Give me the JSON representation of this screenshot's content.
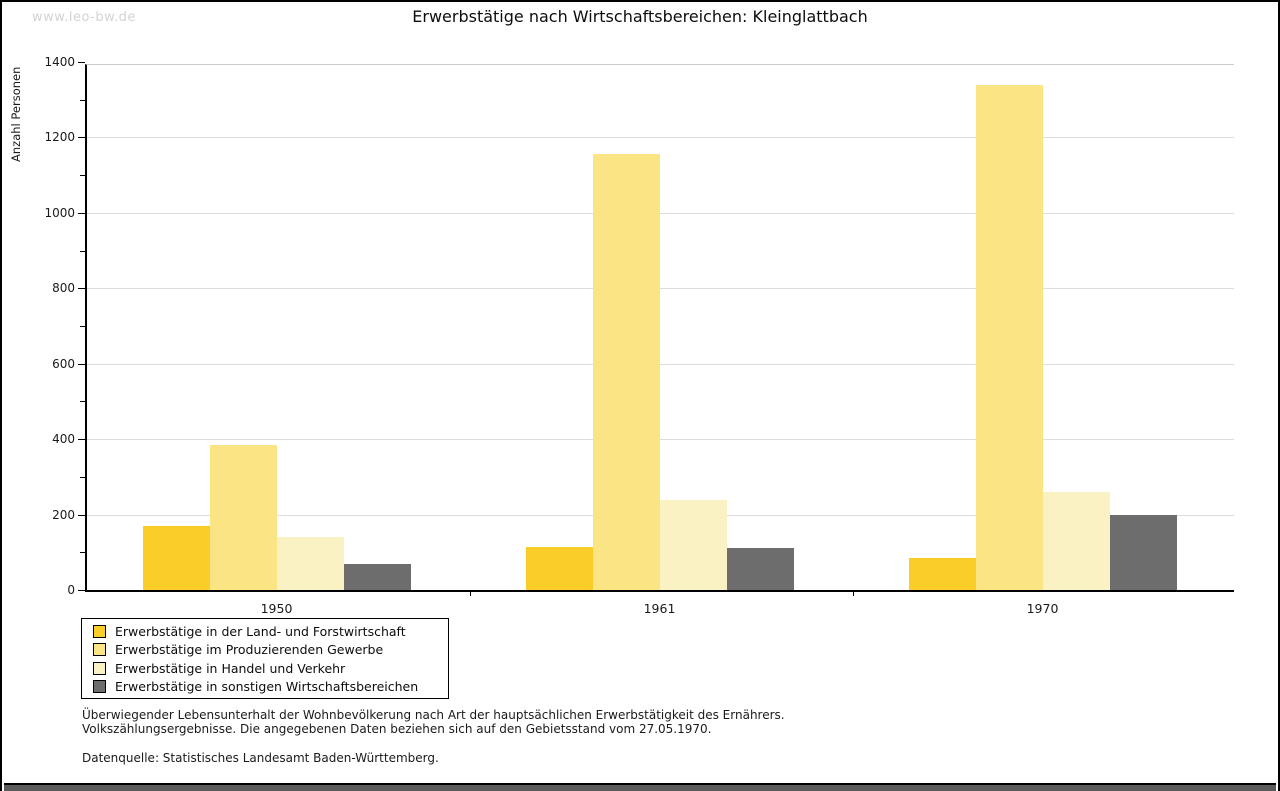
{
  "watermark": "www.leo-bw.de",
  "title": "Erwerbstätige nach Wirtschaftsbereichen: Kleinglattbach",
  "footnotes": {
    "line1": "Überwiegender Lebensunterhalt der Wohnbevölkerung nach Art der hauptsächlichen Erwerbstätigkeit des Ernährers.",
    "line2": "Volkszählungsergebnisse. Die angegebenen Daten beziehen sich auf den Gebietsstand vom 27.05.1970.",
    "source": "Datenquelle: Statistisches Landesamt Baden-Württemberg."
  },
  "chart_data": {
    "type": "bar",
    "title": "Erwerbstätige nach Wirtschaftsbereichen: Kleinglattbach",
    "xlabel": "",
    "ylabel": "Anzahl Personen",
    "categories": [
      "1950",
      "1961",
      "1970"
    ],
    "series": [
      {
        "name": "Erwerbstätige in der Land- und Forstwirtschaft",
        "color": "#FACD28",
        "values": [
          170,
          115,
          85
        ]
      },
      {
        "name": "Erwerbstätige im Produzierenden Gewerbe",
        "color": "#FBE483",
        "values": [
          385,
          1155,
          1340
        ]
      },
      {
        "name": "Erwerbstätige in Handel und Verkehr",
        "color": "#FBF2C4",
        "values": [
          140,
          240,
          260
        ]
      },
      {
        "name": "Erwerbstätige in sonstigen Wirtschaftsbereichen",
        "color": "#6D6D6D",
        "values": [
          70,
          112,
          200
        ]
      }
    ],
    "ylim": [
      0,
      1400
    ],
    "ytick_step": 200,
    "ytick_minor_step": 100,
    "grid": true,
    "legend_position": "bottom-left",
    "grid_color": "#DCDCDC"
  }
}
